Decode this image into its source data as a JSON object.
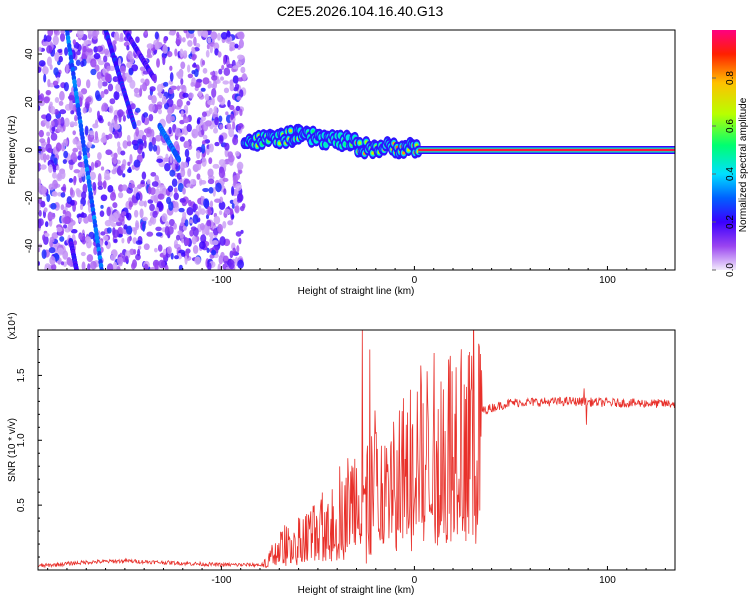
{
  "title": "C2E5.2026.104.16.40.G13",
  "chart_data": [
    {
      "type": "heatmap",
      "xlabel": "Height of straight line (km)",
      "ylabel": "Frequency (Hz)",
      "xlim": [
        -195,
        135
      ],
      "ylim": [
        -50,
        50
      ],
      "xticks": [
        {
          "v": -100,
          "label": "-100"
        },
        {
          "v": 0,
          "label": "0"
        },
        {
          "v": 100,
          "label": "100"
        }
      ],
      "yticks": [
        {
          "v": -40,
          "label": "-40"
        },
        {
          "v": -20,
          "label": "-20"
        },
        {
          "v": 0,
          "label": "0"
        },
        {
          "v": 20,
          "label": "20"
        },
        {
          "v": 40,
          "label": "40"
        }
      ],
      "colorbar": {
        "label": "Normalized spectral amplitude",
        "range": [
          0,
          1
        ],
        "ticks": [
          {
            "v": 0.0,
            "label": "0.0"
          },
          {
            "v": 0.2,
            "label": "0.2"
          },
          {
            "v": 0.4,
            "label": "0.4"
          },
          {
            "v": 0.6,
            "label": "0.6"
          },
          {
            "v": 0.8,
            "label": "0.8"
          }
        ],
        "colors": [
          "#eadcf8",
          "#8a2be2",
          "#4b00ff",
          "#0055ff",
          "#00e5ff",
          "#00ff66",
          "#ccff00",
          "#ffcc00",
          "#ff2200",
          "#ff0080"
        ]
      },
      "noise_region_x": [
        -195,
        -88
      ],
      "streaks": [
        {
          "x": [
            -180,
            -162
          ],
          "y": [
            50,
            -50
          ],
          "amp": 0.3
        },
        {
          "x": [
            -160,
            -145
          ],
          "y": [
            50,
            10
          ],
          "amp": 0.22
        },
        {
          "x": [
            -178,
            -175
          ],
          "y": [
            -38,
            -50
          ],
          "amp": 0.2
        },
        {
          "x": [
            -150,
            -135
          ],
          "y": [
            50,
            30
          ],
          "amp": 0.18
        },
        {
          "x": [
            -132,
            -122
          ],
          "y": [
            10,
            -4
          ],
          "amp": 0.3
        }
      ],
      "carrier": {
        "x": [
          -88,
          135
        ],
        "y": [
          8,
          1,
          0
        ],
        "segments": [
          {
            "x": [
              -88,
              -60
            ],
            "y": [
              3,
              6
            ],
            "amp": 0.75
          },
          {
            "x": [
              -60,
              -30
            ],
            "y": [
              6,
              3
            ],
            "amp": 0.6
          },
          {
            "x": [
              -30,
              2
            ],
            "y": [
              1,
              1
            ],
            "amp": 0.85
          },
          {
            "x": [
              2,
              135
            ],
            "y": [
              0,
              0
            ],
            "amp": 0.95
          }
        ]
      }
    },
    {
      "type": "line",
      "xlabel": "Height of straight line (km)",
      "ylabel": "SNR (10 * v/v)",
      "multiplier_label": "(x10⁴)",
      "xlim": [
        -195,
        135
      ],
      "ylim": [
        0,
        18500
      ],
      "xticks": [
        {
          "v": -100,
          "label": "-100"
        },
        {
          "v": 0,
          "label": "0"
        },
        {
          "v": 100,
          "label": "100"
        }
      ],
      "yticks": [
        {
          "v": 5000,
          "label": "0.5"
        },
        {
          "v": 10000,
          "label": "1.0"
        },
        {
          "v": 15000,
          "label": "1.5"
        }
      ],
      "series": [
        {
          "name": "SNR",
          "color": "#e8302a",
          "profile": [
            [
              -195,
              300
            ],
            [
              -170,
              600
            ],
            [
              -150,
              700
            ],
            [
              -100,
              400
            ],
            [
              -78,
              400
            ],
            [
              -70,
              1800
            ],
            [
              -60,
              2500
            ],
            [
              -50,
              3000
            ],
            [
              -40,
              4800
            ],
            [
              -30,
              5600
            ],
            [
              -20,
              7200
            ],
            [
              -10,
              7000
            ],
            [
              0,
              9000
            ],
            [
              10,
              9600
            ],
            [
              20,
              10500
            ],
            [
              30,
              12000
            ],
            [
              40,
              12500
            ],
            [
              50,
              12900
            ],
            [
              80,
              13000
            ],
            [
              100,
              12900
            ],
            [
              135,
              12800
            ]
          ],
          "spikes": [
            {
              "x": -27,
              "y": 18500
            },
            {
              "x": -25,
              "y": 500
            },
            {
              "x": -23,
              "y": 17000
            },
            {
              "x": 88,
              "y": 14000
            },
            {
              "x": 89,
              "y": 11200
            }
          ]
        }
      ]
    }
  ]
}
